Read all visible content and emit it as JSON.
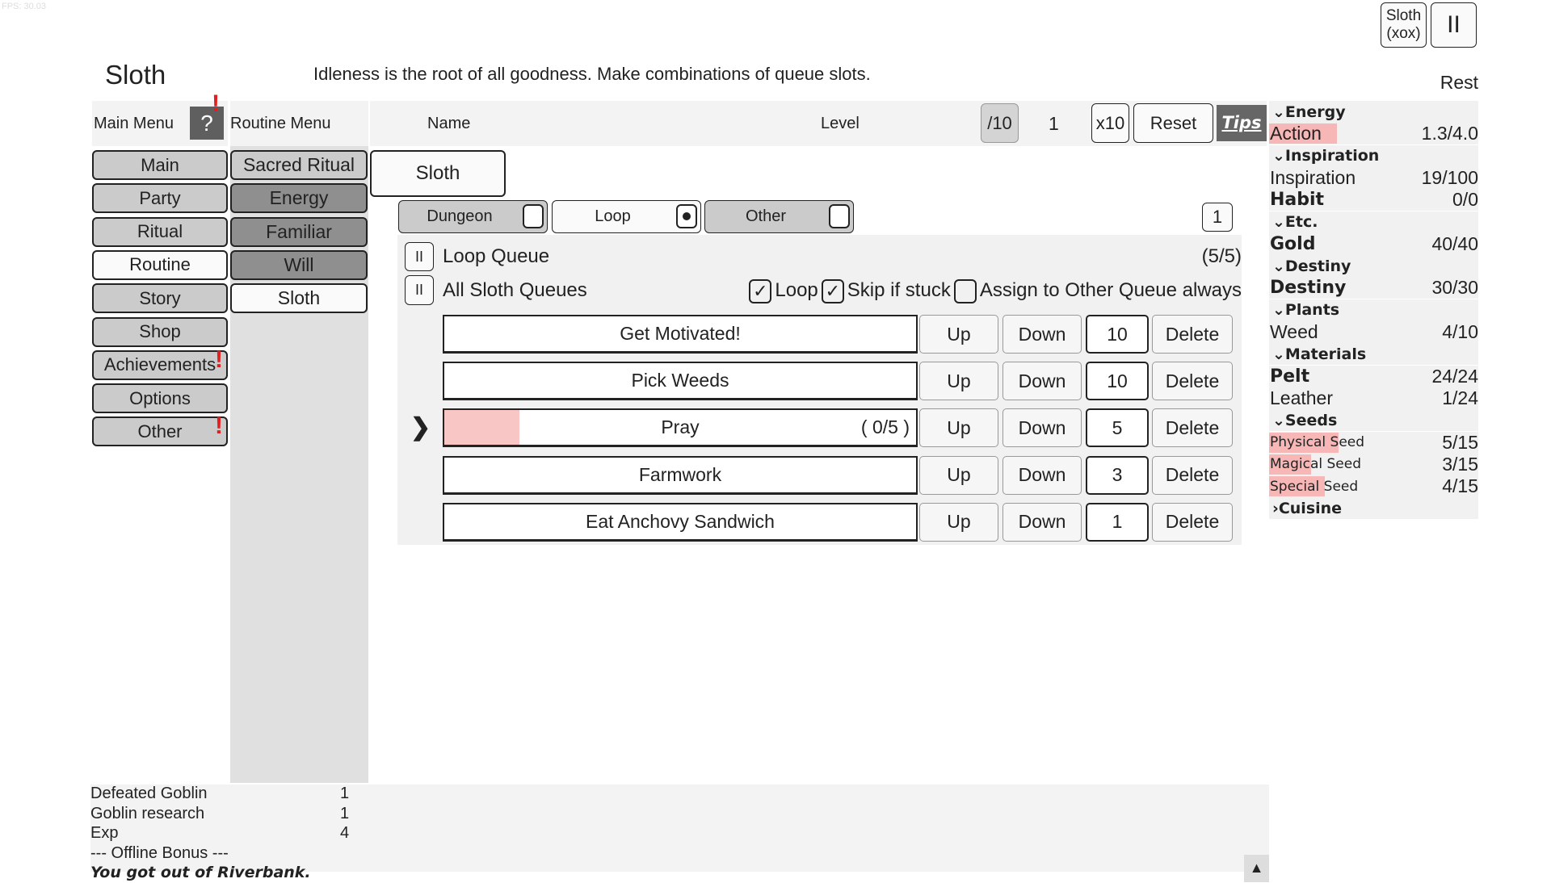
{
  "fps": "FPS: 30.03",
  "title": "Sloth",
  "subtitle": "Idleness is the root of all goodness. Make combinations of queue slots.",
  "top_buttons": {
    "sloth_line1": "Sloth",
    "sloth_line2": "(xox)",
    "pause": "II"
  },
  "rest_label": "Rest",
  "main_menu": {
    "label": "Main Menu",
    "help": "?",
    "alert": "!",
    "items": [
      {
        "label": "Main"
      },
      {
        "label": "Party"
      },
      {
        "label": "Ritual"
      },
      {
        "label": "Routine",
        "active": true
      },
      {
        "label": "Story"
      },
      {
        "label": "Shop"
      },
      {
        "label": "Achievements",
        "alert": "!"
      },
      {
        "label": "Options"
      },
      {
        "label": "Other",
        "alert": "!"
      }
    ]
  },
  "routine_menu": {
    "label": "Routine Menu",
    "items": [
      {
        "label": "Sacred Ritual"
      },
      {
        "label": "Energy"
      },
      {
        "label": "Familiar"
      },
      {
        "label": "Will"
      },
      {
        "label": "Sloth",
        "active": true
      }
    ]
  },
  "header": {
    "name": "Name",
    "level": "Level",
    "div10": "/10",
    "multiplier": "1",
    "x10": "x10",
    "reset": "Reset",
    "tips": "Tips"
  },
  "tab": "Sloth",
  "queue_types": [
    {
      "label": "Dungeon",
      "selected": false
    },
    {
      "label": "Loop",
      "selected": true
    },
    {
      "label": "Other",
      "selected": false
    }
  ],
  "queue_number": "1",
  "loop_queue": {
    "pause": "II",
    "label": "Loop Queue",
    "count": "(5/5)"
  },
  "all_queues": {
    "pause": "II",
    "label": "All Sloth Queues"
  },
  "options": {
    "loop": {
      "label": "Loop",
      "checked": true,
      "mark": "✓"
    },
    "skip": {
      "label": "Skip if stuck",
      "checked": true,
      "mark": "✓"
    },
    "assign": {
      "label": "Assign to Other Queue always",
      "checked": false,
      "mark": ""
    }
  },
  "queue": [
    {
      "name": "Get Motivated!",
      "progress_text": "",
      "progress": 0,
      "count": "10",
      "current": false
    },
    {
      "name": "Pick Weeds",
      "progress_text": "",
      "progress": 0,
      "count": "10",
      "current": false
    },
    {
      "name": "Pray",
      "progress_text": "( 0/5 )",
      "progress": 0.16,
      "count": "5",
      "current": true
    },
    {
      "name": "Farmwork",
      "progress_text": "",
      "progress": 0,
      "count": "3",
      "current": false
    },
    {
      "name": "Eat Anchovy Sandwich",
      "progress_text": "",
      "progress": 0,
      "count": "1",
      "current": false
    }
  ],
  "queue_buttons": {
    "up": "Up",
    "down": "Down",
    "delete": "Delete",
    "current_marker": "❯"
  },
  "resources": [
    {
      "type": "header",
      "label": "⌄Energy"
    },
    {
      "type": "item",
      "label": "Action",
      "value": "1.3/4.0",
      "fill": 0.325
    },
    {
      "type": "header",
      "label": "⌄Inspiration"
    },
    {
      "type": "item",
      "label": "Inspiration",
      "value": "19/100"
    },
    {
      "type": "item",
      "label": "Habit",
      "value": "0/0",
      "bold": true
    },
    {
      "type": "header",
      "label": "⌄Etc."
    },
    {
      "type": "item",
      "label": "Gold",
      "value": "40/40",
      "bold": true
    },
    {
      "type": "header",
      "label": "⌄Destiny"
    },
    {
      "type": "item",
      "label": "Destiny",
      "value": "30/30",
      "bold": true
    },
    {
      "type": "header",
      "label": "⌄Plants"
    },
    {
      "type": "item",
      "label": "Weed",
      "value": "4/10"
    },
    {
      "type": "header",
      "label": "⌄Materials"
    },
    {
      "type": "item",
      "label": "Pelt",
      "value": "24/24",
      "bold": true
    },
    {
      "type": "item",
      "label": "Leather",
      "value": "1/24"
    },
    {
      "type": "header",
      "label": "⌄Seeds"
    },
    {
      "type": "item",
      "label": "Physical Seed",
      "value": "5/15",
      "fill": 0.333,
      "small": true
    },
    {
      "type": "item",
      "label": "Magical Seed",
      "value": "3/15",
      "fill": 0.2,
      "small": true
    },
    {
      "type": "item",
      "label": "Special Seed",
      "value": "4/15",
      "fill": 0.267,
      "small": true
    },
    {
      "type": "header",
      "label": "›Cuisine"
    }
  ],
  "log": [
    {
      "label": "Defeated Goblin",
      "value": "1"
    },
    {
      "label": "Goblin research",
      "value": "1"
    },
    {
      "label": "Exp",
      "value": "4"
    },
    {
      "label": "--- Offline Bonus ---",
      "value": ""
    },
    {
      "label": "You got out of Riverbank.",
      "value": "",
      "italic": true
    }
  ],
  "scroll_up": "▲",
  "colors": {
    "progress": "#f7b7b7",
    "alert": "#e02020",
    "tips_bg": "#666666"
  }
}
